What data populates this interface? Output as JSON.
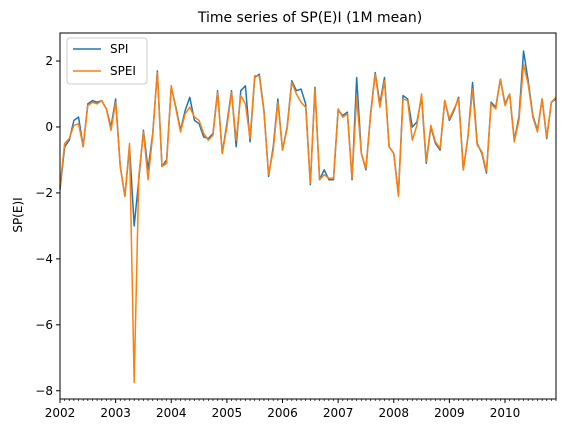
{
  "chart_data": {
    "type": "line",
    "title": "Time series of SP(E)I (1M mean)",
    "xlabel": "",
    "ylabel": "SP(E)I",
    "x_start": "2002-01",
    "x_end": "2010-12",
    "x_frequency": "monthly",
    "x_ticks": [
      "2002",
      "2003",
      "2004",
      "2005",
      "2006",
      "2007",
      "2008",
      "2009",
      "2010"
    ],
    "ylim": [
      -8.25,
      2.85
    ],
    "y_ticks": [
      2,
      0,
      -2,
      -4,
      -6,
      -8
    ],
    "y_tick_labels": [
      "2",
      "0",
      "−2",
      "−4",
      "−6",
      "−8"
    ],
    "grid": false,
    "legend_position": "top-left",
    "series": [
      {
        "name": "SPI",
        "color": "#1f77b4",
        "values": [
          -1.9,
          -0.6,
          -0.4,
          0.2,
          0.3,
          -0.6,
          0.7,
          0.8,
          0.75,
          0.8,
          0.55,
          0.0,
          0.85,
          -1.2,
          -2.1,
          -0.6,
          -3.0,
          -1.6,
          -0.1,
          -1.3,
          -0.2,
          1.7,
          -1.2,
          -1.0,
          1.2,
          0.6,
          -0.1,
          0.5,
          0.9,
          0.2,
          0.1,
          -0.3,
          -0.35,
          -0.2,
          1.1,
          -0.8,
          0.1,
          1.1,
          -0.6,
          1.1,
          1.25,
          -0.45,
          1.5,
          1.6,
          0.5,
          -1.5,
          -0.6,
          0.85,
          -0.7,
          0.0,
          1.4,
          1.1,
          1.15,
          0.7,
          -1.75,
          1.2,
          -1.6,
          -1.3,
          -1.6,
          -1.6,
          0.5,
          0.35,
          0.45,
          -1.6,
          1.5,
          -0.8,
          -1.3,
          0.4,
          1.65,
          0.7,
          1.5,
          -0.6,
          -0.8,
          -2.05,
          0.95,
          0.85,
          0.0,
          0.15,
          0.9,
          -1.1,
          0.0,
          -0.5,
          -0.7,
          0.8,
          0.2,
          0.5,
          0.9,
          -1.3,
          -0.3,
          1.35,
          -0.5,
          -0.8,
          -1.4,
          0.75,
          0.6,
          1.45,
          0.7,
          1.0,
          -0.4,
          0.3,
          2.3,
          1.4,
          0.35,
          -0.1,
          0.85,
          -0.35,
          0.75,
          0.85
        ]
      },
      {
        "name": "SPEI",
        "color": "#ff7f0e",
        "values": [
          -1.8,
          -0.5,
          -0.35,
          0.05,
          0.1,
          -0.6,
          0.65,
          0.75,
          0.7,
          0.8,
          0.55,
          -0.1,
          0.75,
          -1.2,
          -2.1,
          -0.5,
          -7.75,
          -1.5,
          -0.15,
          -1.6,
          -0.25,
          1.65,
          -1.2,
          -1.1,
          1.25,
          0.55,
          -0.15,
          0.4,
          0.6,
          0.3,
          0.2,
          -0.2,
          -0.4,
          -0.25,
          1.05,
          -0.8,
          0.0,
          1.05,
          -0.4,
          0.95,
          0.7,
          -0.35,
          1.55,
          1.55,
          0.45,
          -1.45,
          -0.7,
          0.75,
          -0.7,
          -0.05,
          1.35,
          1.0,
          0.75,
          0.6,
          -1.7,
          1.15,
          -1.6,
          -1.45,
          -1.55,
          -1.55,
          0.55,
          0.3,
          0.4,
          -1.55,
          0.9,
          -0.8,
          -1.25,
          0.35,
          1.6,
          0.6,
          1.4,
          -0.6,
          -0.8,
          -2.1,
          0.85,
          0.8,
          -0.4,
          0.05,
          1.0,
          -1.05,
          0.05,
          -0.45,
          -0.65,
          0.8,
          0.25,
          0.55,
          0.85,
          -1.3,
          -0.3,
          1.15,
          -0.55,
          -0.75,
          -1.35,
          0.7,
          0.55,
          1.45,
          0.65,
          1.0,
          -0.45,
          0.2,
          1.9,
          1.3,
          0.3,
          -0.15,
          0.85,
          -0.3,
          0.75,
          0.9
        ]
      }
    ]
  }
}
